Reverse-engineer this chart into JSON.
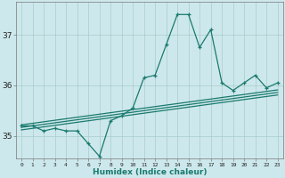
{
  "xlabel": "Humidex (Indice chaleur)",
  "bg_color": "#cde8ec",
  "line_color": "#1a7a6e",
  "grid_color": "#a8cccc",
  "x_main": [
    0,
    1,
    2,
    3,
    4,
    5,
    6,
    7,
    8,
    9,
    10,
    11,
    12,
    13,
    14,
    15,
    16,
    17,
    18,
    19,
    20,
    21,
    22,
    23
  ],
  "y_main": [
    35.2,
    35.2,
    35.1,
    35.15,
    35.1,
    35.1,
    34.85,
    34.6,
    35.3,
    35.4,
    35.55,
    36.15,
    36.2,
    36.8,
    37.4,
    37.4,
    36.75,
    37.1,
    36.05,
    35.9,
    36.05,
    36.2,
    35.95,
    36.05
  ],
  "y_line1": [
    35.22,
    35.25,
    35.28,
    35.31,
    35.34,
    35.37,
    35.4,
    35.43,
    35.46,
    35.49,
    35.52,
    35.55,
    35.58,
    35.61,
    35.64,
    35.67,
    35.7,
    35.73,
    35.76,
    35.79,
    35.82,
    35.85,
    35.88,
    35.91
  ],
  "y_line2": [
    35.17,
    35.2,
    35.23,
    35.26,
    35.29,
    35.32,
    35.35,
    35.38,
    35.41,
    35.44,
    35.47,
    35.5,
    35.53,
    35.56,
    35.59,
    35.62,
    35.65,
    35.68,
    35.71,
    35.74,
    35.77,
    35.8,
    35.83,
    35.86
  ],
  "y_line3": [
    35.12,
    35.15,
    35.18,
    35.21,
    35.24,
    35.27,
    35.3,
    35.33,
    35.36,
    35.39,
    35.42,
    35.45,
    35.48,
    35.51,
    35.54,
    35.57,
    35.6,
    35.63,
    35.66,
    35.69,
    35.72,
    35.75,
    35.78,
    35.81
  ],
  "yticks": [
    35,
    36,
    37
  ],
  "xticks": [
    0,
    1,
    2,
    3,
    4,
    5,
    6,
    7,
    8,
    9,
    10,
    11,
    12,
    13,
    14,
    15,
    16,
    17,
    18,
    19,
    20,
    21,
    22,
    23
  ],
  "ylim": [
    34.55,
    37.65
  ],
  "xlim": [
    -0.5,
    23.5
  ]
}
